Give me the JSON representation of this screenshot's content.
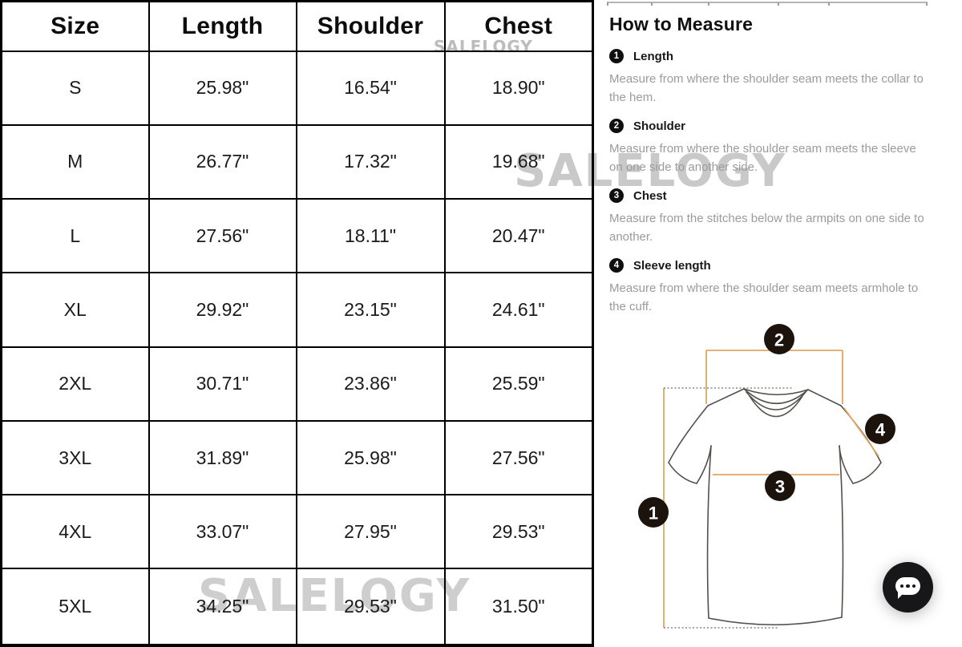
{
  "size_chart": {
    "headers": [
      "Size",
      "Length",
      "Shoulder",
      "Chest"
    ],
    "rows": [
      {
        "size": "S",
        "length": "25.98\"",
        "shoulder": "16.54\"",
        "chest": "18.90\""
      },
      {
        "size": "M",
        "length": "26.77\"",
        "shoulder": "17.32\"",
        "chest": "19.68\""
      },
      {
        "size": "L",
        "length": "27.56\"",
        "shoulder": "18.11\"",
        "chest": "20.47\""
      },
      {
        "size": "XL",
        "length": "29.92\"",
        "shoulder": "23.15\"",
        "chest": "24.61\""
      },
      {
        "size": "2XL",
        "length": "30.71\"",
        "shoulder": "23.86\"",
        "chest": "25.59\""
      },
      {
        "size": "3XL",
        "length": "31.89\"",
        "shoulder": "25.98\"",
        "chest": "27.56\""
      },
      {
        "size": "4XL",
        "length": "33.07\"",
        "shoulder": "27.95\"",
        "chest": "29.53\""
      },
      {
        "size": "5XL",
        "length": "34.25\"",
        "shoulder": "29.53\"",
        "chest": "31.50\""
      }
    ]
  },
  "how_to_measure": {
    "title": "How to Measure",
    "items": [
      {
        "number": "1",
        "label": "Length",
        "description": "Measure from where the shoulder seam meets the collar to the hem."
      },
      {
        "number": "2",
        "label": "Shoulder",
        "description": "Measure from where the shoulder seam meets the sleeve on one side to another side."
      },
      {
        "number": "3",
        "label": "Chest",
        "description": "Measure from the stitches below the armpits on one side to another."
      },
      {
        "number": "4",
        "label": "Sleeve length",
        "description": "Measure from where the shoulder seam meets armhole to the cuff."
      }
    ]
  },
  "diagram": {
    "markers": [
      "1",
      "2",
      "3",
      "4"
    ],
    "line_color": "#e0a763",
    "marker_color": "#1c130c",
    "outline_color": "#54504b"
  },
  "watermarks": {
    "top": "SALELOGY",
    "middle": "SALELOGY",
    "bottom": "SALELOGY"
  },
  "chat": {
    "icon": "chat-bubble-icon"
  }
}
